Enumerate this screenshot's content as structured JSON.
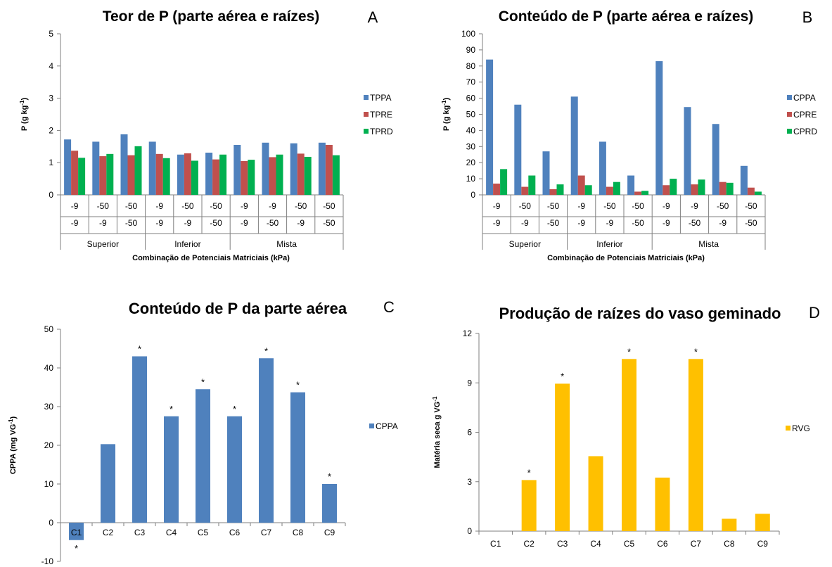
{
  "chart_data": [
    {
      "id": "A",
      "panel_letter": "A",
      "type": "bar",
      "title": "Teor de P (parte aérea e raízes)",
      "xlabel": "Combinação de Potenciais Matriciais (kPa)",
      "ylabel_main": "P (g kg",
      "ylabel_sup": "-1",
      "ylabel_end": ")",
      "ylim": [
        0,
        5
      ],
      "yticks": [
        0,
        1,
        2,
        3,
        4,
        5
      ],
      "categories_row1": [
        "-9",
        "-50",
        "-50",
        "-9",
        "-50",
        "-50",
        "-9",
        "-9",
        "-50",
        "-50"
      ],
      "categories_row2": [
        "-9",
        "-9",
        "-50",
        "-9",
        "-9",
        "-50",
        "-9",
        "-50",
        "-9",
        "-50"
      ],
      "groups": [
        {
          "label": "Superior",
          "span": 3
        },
        {
          "label": "Inferior",
          "span": 3
        },
        {
          "label": "Mista",
          "span": 4
        }
      ],
      "series": [
        {
          "name": "TPPA",
          "color": "#4f81bd",
          "values": [
            1.72,
            1.65,
            1.88,
            1.65,
            1.25,
            1.31,
            1.55,
            1.62,
            1.6,
            1.62
          ]
        },
        {
          "name": "TPRE",
          "color": "#c0504d",
          "values": [
            1.37,
            1.2,
            1.23,
            1.27,
            1.29,
            1.1,
            1.05,
            1.17,
            1.28,
            1.55
          ]
        },
        {
          "name": "TPRD",
          "color": "#00b050",
          "values": [
            1.15,
            1.27,
            1.51,
            1.14,
            1.06,
            1.25,
            1.09,
            1.25,
            1.18,
            1.23
          ]
        }
      ],
      "legend": "right"
    },
    {
      "id": "B",
      "panel_letter": "B",
      "type": "bar",
      "title": "Conteúdo de P (parte aérea e raízes)",
      "xlabel": "Combinação de Potenciais Matriciais (kPa)",
      "ylabel_main": "P (g kg",
      "ylabel_sup": "-1",
      "ylabel_end": ")",
      "ylim": [
        0,
        100
      ],
      "yticks": [
        0,
        10,
        20,
        30,
        40,
        50,
        60,
        70,
        80,
        90,
        100
      ],
      "categories_row1": [
        "-9",
        "-50",
        "-50",
        "-9",
        "-50",
        "-50",
        "-9",
        "-9",
        "-50",
        "-50"
      ],
      "categories_row2": [
        "-9",
        "-9",
        "-50",
        "-9",
        "-9",
        "-50",
        "-9",
        "-50",
        "-9",
        "-50"
      ],
      "groups": [
        {
          "label": "Superior",
          "span": 3
        },
        {
          "label": "Inferior",
          "span": 3
        },
        {
          "label": "Mista",
          "span": 4
        }
      ],
      "series": [
        {
          "name": "CPPA",
          "color": "#4f81bd",
          "values": [
            84,
            56,
            27,
            61,
            33,
            12,
            83,
            54.5,
            44,
            18
          ]
        },
        {
          "name": "CPRE",
          "color": "#c0504d",
          "values": [
            7,
            5,
            3.5,
            12,
            5,
            2,
            6,
            6.5,
            8,
            4.5
          ]
        },
        {
          "name": "CPRD",
          "color": "#00b050",
          "values": [
            16,
            12,
            6.5,
            6,
            8,
            2.5,
            10,
            9.5,
            7.5,
            2
          ]
        }
      ],
      "legend": "right"
    },
    {
      "id": "C",
      "panel_letter": "C",
      "type": "bar",
      "title": "Conteúdo de P da parte aérea",
      "xlabel": "",
      "ylabel_main": "CPPA (mg VG",
      "ylabel_sup": "-1",
      "ylabel_end": ")",
      "ylim": [
        -10,
        50
      ],
      "yticks": [
        -10,
        0,
        10,
        20,
        30,
        40,
        50
      ],
      "categories": [
        "C1",
        "C2",
        "C3",
        "C4",
        "C5",
        "C6",
        "C7",
        "C8",
        "C9"
      ],
      "series": [
        {
          "name": "CPPA",
          "color": "#4f81bd",
          "values": [
            -4.5,
            20.3,
            43,
            27.5,
            34.5,
            27.5,
            42.5,
            33.7,
            10
          ]
        }
      ],
      "significance": [
        "*",
        "",
        "*",
        "*",
        "*",
        "*",
        "*",
        "*",
        "*"
      ],
      "legend": "right"
    },
    {
      "id": "D",
      "panel_letter": "D",
      "type": "bar",
      "title": "Produção de raízes do vaso geminado",
      "xlabel": "",
      "ylabel_main": "Matéria seca g VG",
      "ylabel_sup": "-1",
      "ylabel_end": "",
      "ylim": [
        0,
        12
      ],
      "yticks": [
        0,
        3,
        6,
        9,
        12
      ],
      "categories": [
        "C1",
        "C2",
        "C3",
        "C4",
        "C5",
        "C6",
        "C7",
        "C8",
        "C9"
      ],
      "series": [
        {
          "name": "RVG",
          "color": "#ffc000",
          "values": [
            0,
            3.1,
            8.95,
            4.55,
            10.45,
            3.25,
            10.45,
            0.75,
            1.05
          ]
        }
      ],
      "significance": [
        "",
        "*",
        "*",
        "",
        "*",
        "",
        "*",
        "",
        ""
      ],
      "legend": "right"
    }
  ]
}
